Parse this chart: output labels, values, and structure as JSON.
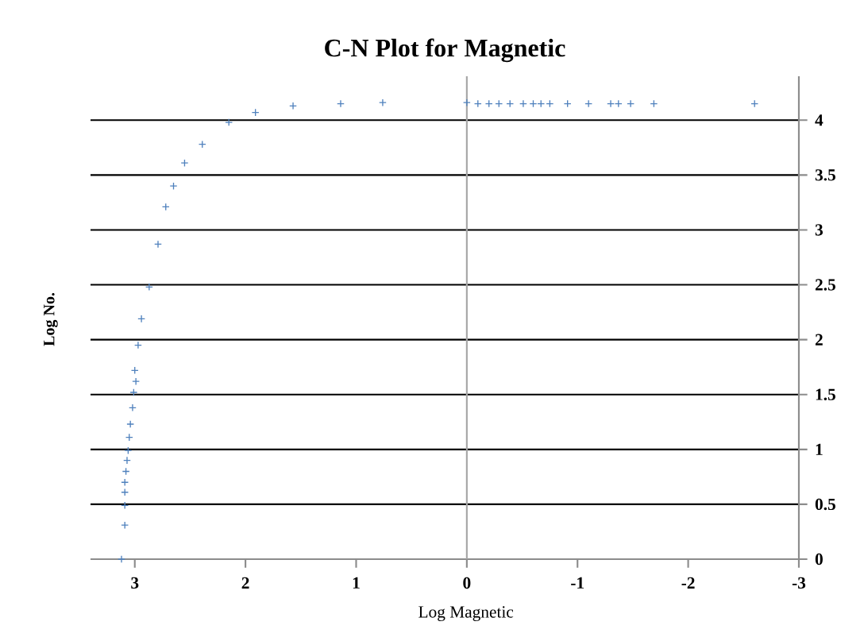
{
  "chart_data": {
    "type": "scatter",
    "title": "C-N Plot for Magnetic",
    "xlabel": "Log Magnetic",
    "ylabel": "Log No.",
    "x": [
      3.12,
      3.09,
      3.09,
      3.09,
      3.09,
      3.08,
      3.07,
      3.06,
      3.05,
      3.04,
      3.02,
      3.01,
      3.0,
      2.99,
      2.97,
      2.94,
      2.87,
      2.79,
      2.72,
      2.65,
      2.55,
      2.39,
      2.15,
      1.91,
      1.57,
      1.14,
      0.76,
      0.0,
      -0.1,
      -0.2,
      -0.29,
      -0.39,
      -0.51,
      -0.6,
      -0.67,
      -0.75,
      -0.91,
      -1.1,
      -1.3,
      -1.37,
      -1.48,
      -1.69,
      -2.6
    ],
    "series": [
      {
        "color": "#4f81bd",
        "values": [
          0.0,
          0.31,
          0.49,
          0.61,
          0.7,
          0.8,
          0.9,
          0.99,
          1.11,
          1.23,
          1.38,
          1.52,
          1.72,
          1.62,
          1.95,
          2.19,
          2.48,
          2.87,
          3.21,
          3.4,
          3.61,
          3.78,
          3.98,
          4.07,
          4.13,
          4.15,
          4.16,
          4.16,
          4.15,
          4.15,
          4.15,
          4.15,
          4.15,
          4.15,
          4.15,
          4.15,
          4.15,
          4.15,
          4.15,
          4.15,
          4.15,
          4.15,
          4.15
        ]
      }
    ],
    "xlim": [
      3.4,
      -3
    ],
    "xticks": [
      3,
      2,
      1,
      0,
      -1,
      -2,
      -3
    ],
    "ylim": [
      0,
      4.4
    ],
    "yticks": [
      0,
      0.5,
      1,
      1.5,
      2,
      2.5,
      3,
      3.5,
      4
    ],
    "grid": "y",
    "marker": "cross",
    "ref_lines": [
      {
        "axis": "x",
        "value": 0,
        "color": "#a6a6a6"
      }
    ]
  }
}
